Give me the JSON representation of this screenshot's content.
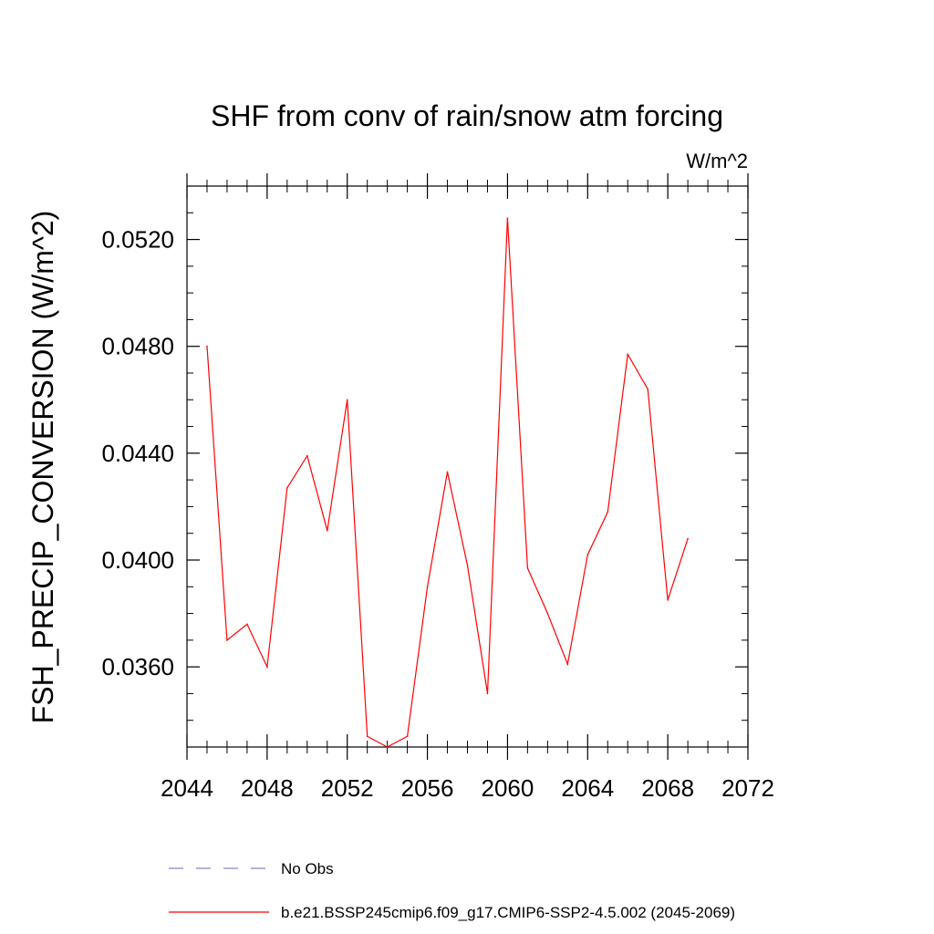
{
  "chart_data": {
    "type": "line",
    "title": "SHF from conv of rain/snow atm forcing",
    "units_label": "W/m^2",
    "ylabel": "FSH_PRECIP_CONVERSION  (W/m^2)",
    "xlabel": "",
    "xlim": [
      2044,
      2072
    ],
    "ylim": [
      0.033,
      0.054
    ],
    "x_ticks": [
      2044,
      2048,
      2052,
      2056,
      2060,
      2064,
      2068,
      2072
    ],
    "x_tick_labels": [
      "2044",
      "2048",
      "2052",
      "2056",
      "2060",
      "2064",
      "2068",
      "2072"
    ],
    "y_ticks": [
      0.036,
      0.04,
      0.044,
      0.048,
      0.052
    ],
    "y_tick_labels": [
      "0.0360",
      "0.0400",
      "0.0440",
      "0.0480",
      "0.0520"
    ],
    "grid": false,
    "legend_position": "bottom",
    "series": [
      {
        "name": "No Obs",
        "color": "#8c82c8",
        "dash": true,
        "x": [],
        "y": []
      },
      {
        "name": "b.e21.BSSP245cmip6.f09_g17.CMIP6-SSP2-4.5.002 (2045-2069)",
        "color": "#ff0000",
        "dash": false,
        "x": [
          2045,
          2046,
          2047,
          2048,
          2049,
          2050,
          2051,
          2052,
          2053,
          2054,
          2055,
          2056,
          2057,
          2058,
          2059,
          2060,
          2061,
          2062,
          2063,
          2064,
          2065,
          2066,
          2067,
          2068,
          2069
        ],
        "y": [
          0.048,
          0.037,
          0.0376,
          0.036,
          0.0427,
          0.0439,
          0.0411,
          0.046,
          0.0334,
          0.033,
          0.0334,
          0.039,
          0.0433,
          0.0398,
          0.035,
          0.0528,
          0.0397,
          0.038,
          0.0361,
          0.0402,
          0.0418,
          0.0477,
          0.0464,
          0.0385,
          0.0408
        ]
      }
    ]
  }
}
